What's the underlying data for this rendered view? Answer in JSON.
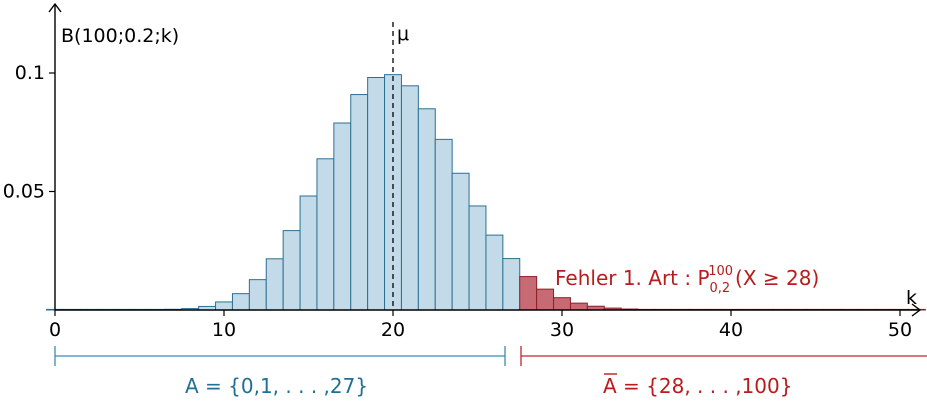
{
  "chart_data": {
    "type": "bar",
    "ylabel": "B(100;0.2;k)",
    "xlabel": "k",
    "xlim": [
      0,
      52
    ],
    "ylim": [
      0,
      0.11
    ],
    "x_ticks": [
      0,
      10,
      20,
      30,
      40,
      50
    ],
    "y_ticks": [
      0.05,
      0.1
    ],
    "y_tick_labels": [
      "0.05",
      "0.1"
    ],
    "mean_label": "μ",
    "mean_value": 20,
    "x": [
      0,
      1,
      2,
      3,
      4,
      5,
      6,
      7,
      8,
      9,
      10,
      11,
      12,
      13,
      14,
      15,
      16,
      17,
      18,
      19,
      20,
      21,
      22,
      23,
      24,
      25,
      26,
      27,
      28,
      29,
      30,
      31,
      32,
      33,
      34,
      35,
      36,
      37,
      38,
      39,
      40,
      41,
      42,
      43,
      44,
      45,
      46,
      47,
      48,
      49,
      50,
      51
    ],
    "values": [
      0.0,
      0.0,
      0.0,
      0.0,
      0.0,
      0.0,
      0.0001,
      0.0003,
      0.0006,
      0.0015,
      0.0034,
      0.0069,
      0.0128,
      0.0216,
      0.0335,
      0.0481,
      0.0638,
      0.0789,
      0.0909,
      0.0981,
      0.0993,
      0.0946,
      0.0849,
      0.072,
      0.0577,
      0.0439,
      0.0316,
      0.0217,
      0.0141,
      0.0088,
      0.0052,
      0.0029,
      0.0016,
      0.0008,
      0.0004,
      0.0002,
      0.0001,
      0.0,
      0.0,
      0.0,
      0.0,
      0.0,
      0.0,
      0.0,
      0.0,
      0.0,
      0.0,
      0.0,
      0.0,
      0.0,
      0.0,
      0.0
    ],
    "critical_k": 28,
    "colors": {
      "accept": "#c3dbe8",
      "accept_stroke": "#2d6f91",
      "reject": "#c66b73",
      "reject_stroke": "#8e1f28",
      "reject_line": "#c0262f",
      "accept_line": "#3a8db5"
    },
    "annotation": {
      "prefix": "Fehler 1. Art : P",
      "sup": "100",
      "sub": "0,2",
      "suffix": "(X ≥ 28)"
    },
    "accept_region": {
      "label": "A = {0,1, . . . ,27}"
    },
    "reject_region": {
      "bar": "A",
      "label": " = {28, . . . ,100}"
    }
  }
}
